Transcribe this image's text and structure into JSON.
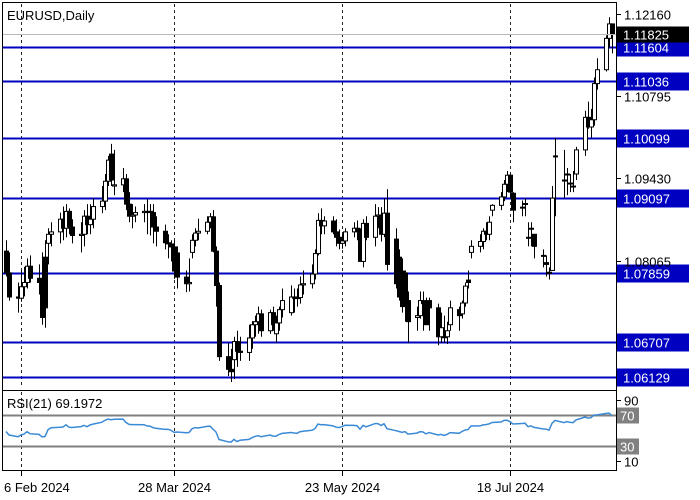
{
  "window": {
    "symbol_label": "EURUSD,Daily",
    "indicator_label": "RSI(21) 69.1972"
  },
  "colors": {
    "background": "#ffffff",
    "frame": "#000000",
    "candle": "#000000",
    "grid": "#000000",
    "level_line": "#0000c0",
    "level_box": "#0000c0",
    "level_text": "#ffffff",
    "current_box": "#000000",
    "rsi_line": "#3a8ad6",
    "rsi_level": "#808080"
  },
  "chart_data": [
    {
      "type": "candlestick",
      "title": "EURUSD,Daily",
      "x_labels": [
        "6 Feb 2024",
        "28 Mar 2024",
        "23 May 2024",
        "18 Jul 2024"
      ],
      "x_range": [
        "2024-01-31",
        "2024-08-22"
      ],
      "ylim": [
        1.0595,
        1.1232
      ],
      "y_ticks": [
        "1.12160",
        "1.10795",
        "1.09430",
        "1.08065"
      ],
      "current_price": "1.11825",
      "levels": [
        "1.11604",
        "1.11036",
        "1.10099",
        "1.09097",
        "1.07859",
        "1.06707",
        "1.06129"
      ],
      "grid": "vertical dashed at date labels",
      "series": [
        {
          "x": [
            "2024-02-01",
            "2024-02-02",
            "2024-02-05",
            "2024-02-06",
            "2024-02-07",
            "2024-02-08",
            "2024-02-09",
            "2024-02-12",
            "2024-02-13",
            "2024-02-14",
            "2024-02-15",
            "2024-02-16",
            "2024-02-19",
            "2024-02-20",
            "2024-02-21",
            "2024-02-22",
            "2024-02-23",
            "2024-02-26",
            "2024-02-27",
            "2024-02-28",
            "2024-02-29",
            "2024-03-01",
            "2024-03-04",
            "2024-03-05",
            "2024-03-06",
            "2024-03-07",
            "2024-03-08",
            "2024-03-11",
            "2024-03-12",
            "2024-03-13",
            "2024-03-14",
            "2024-03-15",
            "2024-03-18",
            "2024-03-19",
            "2024-03-20",
            "2024-03-21",
            "2024-03-22",
            "2024-03-25",
            "2024-03-26",
            "2024-03-27",
            "2024-03-28",
            "2024-03-29",
            "2024-04-01",
            "2024-04-02",
            "2024-04-03",
            "2024-04-04",
            "2024-04-05",
            "2024-04-08",
            "2024-04-09",
            "2024-04-10",
            "2024-04-11",
            "2024-04-12",
            "2024-04-15",
            "2024-04-16",
            "2024-04-17",
            "2024-04-18",
            "2024-04-19",
            "2024-04-22",
            "2024-04-23",
            "2024-04-24",
            "2024-04-25",
            "2024-04-26",
            "2024-04-29",
            "2024-04-30",
            "2024-05-01",
            "2024-05-02",
            "2024-05-03",
            "2024-05-06",
            "2024-05-07",
            "2024-05-08",
            "2024-05-09",
            "2024-05-10",
            "2024-05-13",
            "2024-05-14",
            "2024-05-15",
            "2024-05-16",
            "2024-05-17",
            "2024-05-20",
            "2024-05-21",
            "2024-05-22",
            "2024-05-23",
            "2024-05-24",
            "2024-05-27",
            "2024-05-28",
            "2024-05-29",
            "2024-05-30",
            "2024-05-31",
            "2024-06-03",
            "2024-06-04",
            "2024-06-05",
            "2024-06-06",
            "2024-06-07",
            "2024-06-10",
            "2024-06-11",
            "2024-06-12",
            "2024-06-13",
            "2024-06-14",
            "2024-06-17",
            "2024-06-18",
            "2024-06-19",
            "2024-06-20",
            "2024-06-21",
            "2024-06-24",
            "2024-06-25",
            "2024-06-26",
            "2024-06-27",
            "2024-06-28",
            "2024-07-01",
            "2024-07-02",
            "2024-07-03",
            "2024-07-04",
            "2024-07-05",
            "2024-07-08",
            "2024-07-09",
            "2024-07-10",
            "2024-07-11",
            "2024-07-12",
            "2024-07-15",
            "2024-07-16",
            "2024-07-17",
            "2024-07-18",
            "2024-07-19",
            "2024-07-22",
            "2024-07-23",
            "2024-07-24",
            "2024-07-25",
            "2024-07-26",
            "2024-07-29",
            "2024-07-30",
            "2024-07-31",
            "2024-08-01",
            "2024-08-02",
            "2024-08-05",
            "2024-08-06",
            "2024-08-07",
            "2024-08-08",
            "2024-08-09",
            "2024-08-12",
            "2024-08-13",
            "2024-08-14",
            "2024-08-15",
            "2024-08-16",
            "2024-08-19",
            "2024-08-20",
            "2024-08-21"
          ],
          "open": [
            1.0822,
            1.0786,
            1.0746,
            1.0744,
            1.0763,
            1.077,
            1.0797,
            1.0777,
            1.077,
            1.0812,
            1.0835,
            1.085,
            1.0854,
            1.0875,
            1.086,
            1.0888,
            1.0862,
            1.0848,
            1.085,
            1.088,
            1.0866,
            1.0875,
            1.0896,
            1.0905,
            1.0938,
            1.0983,
            1.093,
            1.0932,
            1.0942,
            1.09,
            1.088,
            1.0882,
            1.0886,
            1.0888,
            1.0888,
            1.0886,
            1.0862,
            1.0855,
            1.0836,
            1.0834,
            1.0829,
            1.0819,
            1.0779,
            1.0768,
            1.082,
            1.084,
            1.0852,
            1.0855,
            1.087,
            1.0879,
            1.0822,
            1.0765,
            1.0647,
            1.0626,
            1.0642,
            1.0672,
            1.0656,
            1.0654,
            1.0678,
            1.07,
            1.0705,
            1.0718,
            1.069,
            1.072,
            1.0685,
            1.0703,
            1.0725,
            1.072,
            1.0746,
            1.0744,
            1.0745,
            1.0766,
            1.0768,
            1.0784,
            1.0818,
            1.0873,
            1.0864,
            1.0872,
            1.0854,
            1.0845,
            1.0835,
            1.0839,
            1.0854,
            1.086,
            1.0855,
            1.0805,
            1.0868,
            1.0845,
            1.088,
            1.0882,
            1.085,
            1.0885,
            1.0842,
            1.0812,
            1.0789,
            1.0786,
            1.074,
            1.0712,
            1.0715,
            1.074,
            1.0735,
            1.074,
            1.0728,
            1.068,
            1.068,
            1.068,
            1.07,
            1.0725,
            1.0718,
            1.0736,
            1.0774,
            1.082,
            1.083,
            1.0838,
            1.0855,
            1.085,
            1.089,
            1.0898,
            1.0912,
            1.0933,
            1.0948,
            1.0918,
            1.0895,
            1.0901,
            1.0845,
            1.086,
            1.085,
            1.0815,
            1.0803,
            1.0787,
            1.079,
            1.098,
            1.094,
            1.095,
            1.0935,
            1.093,
            1.095,
            1.099,
            1.1044,
            1.1028,
            1.104,
            1.11,
            1.1123,
            1.1175,
            1.1199
          ],
          "high": [
            1.084,
            1.082,
            1.077,
            1.079,
            1.0796,
            1.081,
            1.0815,
            1.08,
            1.082,
            1.084,
            1.086,
            1.087,
            1.0886,
            1.0896,
            1.09,
            1.0893,
            1.0875,
            1.087,
            1.089,
            1.09,
            1.09,
            1.091,
            1.093,
            1.095,
            1.098,
            1.1,
            1.099,
            1.096,
            1.095,
            1.092,
            1.09,
            1.0896,
            1.09,
            1.0908,
            1.09,
            1.09,
            1.088,
            1.0866,
            1.085,
            1.084,
            1.084,
            1.083,
            1.079,
            1.081,
            1.085,
            1.086,
            1.0876,
            1.088,
            1.0885,
            1.089,
            1.083,
            1.077,
            1.067,
            1.066,
            1.068,
            1.069,
            1.068,
            1.07,
            1.0706,
            1.0715,
            1.073,
            1.0725,
            1.0725,
            1.073,
            1.0715,
            1.073,
            1.076,
            1.0765,
            1.076,
            1.076,
            1.078,
            1.079,
            1.08,
            1.0825,
            1.0885,
            1.0893,
            1.088,
            1.088,
            1.0875,
            1.0858,
            1.085,
            1.086,
            1.087,
            1.0873,
            1.086,
            1.0875,
            1.088,
            1.09,
            1.0895,
            1.0895,
            1.091,
            1.0925,
            1.086,
            1.0825,
            1.081,
            1.079,
            1.0755,
            1.073,
            1.0755,
            1.0755,
            1.0745,
            1.0745,
            1.0735,
            1.072,
            1.0715,
            1.0705,
            1.074,
            1.073,
            1.074,
            1.077,
            1.079,
            1.084,
            1.085,
            1.086,
            1.087,
            1.088,
            1.09,
            1.092,
            1.094,
            1.0955,
            1.095,
            1.092,
            1.0906,
            1.091,
            1.087,
            1.087,
            1.085,
            1.0825,
            1.0815,
            1.0795,
            1.093,
            1.101,
            1.099,
            1.096,
            1.095,
            1.0955,
            1.0995,
            1.1055,
            1.107,
            1.1058,
            1.111,
            1.1142,
            1.118,
            1.121,
            1.1199
          ],
          "low": [
            1.078,
            1.074,
            1.072,
            1.0738,
            1.0747,
            1.076,
            1.077,
            1.075,
            1.07,
            1.0695,
            1.08,
            1.083,
            1.0835,
            1.084,
            1.0845,
            1.085,
            1.0835,
            1.082,
            1.083,
            1.085,
            1.085,
            1.086,
            1.0885,
            1.089,
            1.093,
            1.093,
            1.0915,
            1.092,
            1.089,
            1.087,
            1.086,
            1.087,
            1.087,
            1.085,
            1.0848,
            1.0835,
            1.083,
            1.0825,
            1.081,
            1.0805,
            1.0776,
            1.076,
            1.0754,
            1.0755,
            1.081,
            1.083,
            1.084,
            1.085,
            1.086,
            1.082,
            1.073,
            1.064,
            1.0615,
            1.0605,
            1.061,
            1.063,
            1.064,
            1.064,
            1.066,
            1.068,
            1.0685,
            1.068,
            1.0685,
            1.069,
            1.067,
            1.069,
            1.0712,
            1.0715,
            1.072,
            1.073,
            1.0735,
            1.075,
            1.076,
            1.0775,
            1.0815,
            1.085,
            1.085,
            1.085,
            1.083,
            1.0825,
            1.0826,
            1.083,
            1.0845,
            1.084,
            1.0805,
            1.0795,
            1.084,
            1.083,
            1.086,
            1.0838,
            1.0845,
            1.079,
            1.076,
            1.074,
            1.072,
            1.0705,
            1.067,
            1.069,
            1.071,
            1.069,
            1.07,
            1.069,
            1.0666,
            1.067,
            1.067,
            1.0668,
            1.069,
            1.069,
            1.071,
            1.073,
            1.076,
            1.081,
            1.082,
            1.0825,
            1.084,
            1.084,
            1.088,
            1.089,
            1.0905,
            1.092,
            1.091,
            1.087,
            1.088,
            1.088,
            1.083,
            1.083,
            1.081,
            1.0795,
            1.078,
            1.0775,
            1.079,
            1.088,
            1.091,
            1.0915,
            1.092,
            1.092,
            1.094,
            1.098,
            1.1025,
            1.101,
            1.103,
            1.109,
            1.112,
            1.116,
            1.115
          ],
          "close": [
            1.0786,
            1.0746,
            1.0744,
            1.0763,
            1.077,
            1.0797,
            1.0777,
            1.077,
            1.0712,
            1.0728,
            1.085,
            1.0854,
            1.0875,
            1.086,
            1.0888,
            1.0862,
            1.0848,
            1.085,
            1.088,
            1.0866,
            1.0875,
            1.0896,
            1.0905,
            1.0938,
            1.0973,
            1.094,
            1.0932,
            1.0942,
            1.09,
            1.088,
            1.0882,
            1.0886,
            1.0888,
            1.0888,
            1.0886,
            1.0862,
            1.0855,
            1.0836,
            1.0834,
            1.0829,
            1.0789,
            1.0779,
            1.0768,
            1.077,
            1.084,
            1.0852,
            1.0855,
            1.087,
            1.0879,
            1.0822,
            1.0765,
            1.0647,
            1.0626,
            1.0622,
            1.0672,
            1.0656,
            1.0654,
            1.0678,
            1.07,
            1.0705,
            1.0718,
            1.069,
            1.072,
            1.07,
            1.0703,
            1.0725,
            1.074,
            1.0746,
            1.0744,
            1.0745,
            1.0766,
            1.0768,
            1.0784,
            1.0818,
            1.0873,
            1.0864,
            1.0872,
            1.0854,
            1.0845,
            1.0835,
            1.0839,
            1.0854,
            1.086,
            1.0855,
            1.0805,
            1.0868,
            1.0845,
            1.088,
            1.0882,
            1.085,
            1.0885,
            1.08,
            1.0768,
            1.0746,
            1.073,
            1.074,
            1.0705,
            1.0715,
            1.074,
            1.0735,
            1.07,
            1.0728,
            1.068,
            1.0695,
            1.068,
            1.069,
            1.0728,
            1.0715,
            1.0736,
            1.0764,
            1.077,
            1.083,
            1.0838,
            1.0855,
            1.085,
            1.087,
            1.0898,
            1.0912,
            1.0933,
            1.0948,
            1.092,
            1.089,
            1.0895,
            1.0901,
            1.0845,
            1.086,
            1.083,
            1.0815,
            1.08,
            1.0785,
            1.091,
            1.098,
            1.094,
            1.095,
            1.0935,
            1.093,
            1.099,
            1.1044,
            1.1028,
            1.104,
            1.11,
            1.1123,
            1.1175,
            1.1199,
            1.1182
          ]
        }
      ]
    },
    {
      "type": "line",
      "title": "RSI(21) 69.1972",
      "ylim": [
        0,
        100
      ],
      "y_ticks": [
        "90",
        "70",
        "30",
        "10"
      ],
      "reference_levels": [
        70,
        30
      ],
      "series": [
        {
          "name": "RSI(21)",
          "values": [
            48.7,
            44.1,
            42.0,
            44.2,
            45.3,
            48.4,
            45.9,
            45.0,
            41.7,
            42.2,
            51.0,
            53.5,
            54.2,
            54.5,
            57.4,
            54.3,
            53.9,
            55.1,
            56.6,
            54.9,
            57.1,
            58.3,
            60.8,
            63.2,
            64.9,
            64.0,
            64.5,
            64.8,
            60.4,
            57.9,
            57.6,
            57.7,
            57.5,
            56.0,
            55.6,
            53.8,
            52.9,
            51.4,
            51.6,
            50.3,
            47.5,
            48.0,
            47.0,
            47.4,
            52.2,
            53.8,
            53.3,
            55.3,
            55.7,
            51.8,
            48.0,
            38.3,
            35.3,
            34.9,
            38.5,
            35.6,
            37.4,
            38.5,
            40.6,
            42.4,
            43.4,
            42.0,
            44.2,
            42.7,
            42.6,
            44.8,
            46.2,
            47.4,
            46.8,
            46.3,
            48.4,
            48.9,
            50.3,
            52.5,
            58.3,
            57.5,
            57.7,
            56.0,
            54.3,
            53.8,
            55.0,
            56.7,
            56.6,
            56.2,
            51.7,
            56.6,
            54.8,
            59.0,
            58.9,
            56.5,
            58.7,
            52.3,
            49.7,
            48.7,
            47.5,
            48.4,
            45.3,
            46.6,
            48.4,
            48.1,
            45.6,
            47.4,
            44.1,
            45.0,
            43.6,
            44.9,
            47.3,
            46.4,
            48.7,
            50.5,
            51.3,
            55.9,
            56.0,
            57.3,
            57.7,
            58.6,
            60.4,
            61.1,
            63.1,
            63.3,
            61.4,
            58.5,
            59.1,
            59.5,
            54.9,
            56.0,
            54.0,
            52.1,
            51.8,
            50.4,
            59.3,
            63.1,
            60.3,
            61.5,
            60.7,
            60.1,
            63.8,
            67.4,
            66.1,
            66.6,
            70.1,
            70.3,
            72.1,
            72.5,
            69.2
          ]
        }
      ]
    }
  ]
}
